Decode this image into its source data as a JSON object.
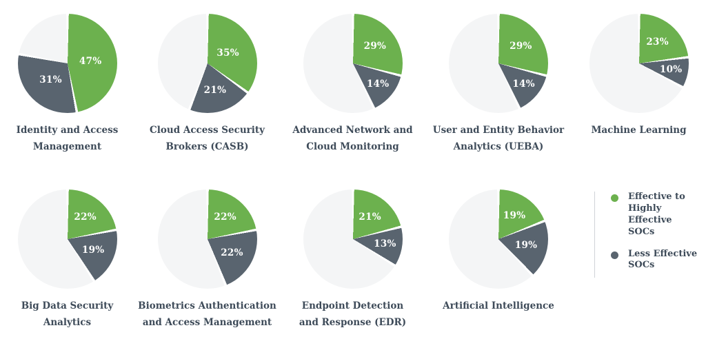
{
  "colors": {
    "effective": "#6cb14e",
    "less_effective": "#59646f",
    "remainder": "#f4f5f6",
    "title_text": "#3e4b59",
    "divider": "#cfd3d7",
    "slice_label_text": "#ffffff"
  },
  "legend": {
    "items": [
      {
        "label": "Effective to\nHighly Effective\nSOCs",
        "color_key": "effective"
      },
      {
        "label": "Less Effective\nSOCs",
        "color_key": "less_effective"
      }
    ]
  },
  "chart_data": {
    "type": "pie",
    "series_names": [
      "Effective to Highly Effective SOCs",
      "Less Effective SOCs",
      "Unlabeled remainder"
    ],
    "layout": {
      "rows": 2,
      "columns": 5,
      "legend_position": "bottom-right",
      "slice_start": "12 o'clock, clockwise: effective then less-effective"
    },
    "charts": [
      {
        "title": "Identity and Access\nManagement",
        "effective_pct": 47,
        "less_effective_pct": 31,
        "remainder_pct": 22,
        "effective_label": "47%",
        "less_effective_label": "31%"
      },
      {
        "title": "Cloud Access Security\nBrokers (CASB)",
        "effective_pct": 35,
        "less_effective_pct": 21,
        "remainder_pct": 44,
        "effective_label": "35%",
        "less_effective_label": "21%"
      },
      {
        "title": "Advanced Network and\nCloud Monitoring",
        "effective_pct": 29,
        "less_effective_pct": 14,
        "remainder_pct": 57,
        "effective_label": "29%",
        "less_effective_label": "14%"
      },
      {
        "title": "User and Entity Behavior\nAnalytics (UEBA)",
        "effective_pct": 29,
        "less_effective_pct": 14,
        "remainder_pct": 57,
        "effective_label": "29%",
        "less_effective_label": "14%"
      },
      {
        "title": "Machine Learning",
        "effective_pct": 23,
        "less_effective_pct": 10,
        "remainder_pct": 67,
        "effective_label": "23%",
        "less_effective_label": "10%"
      },
      {
        "title": "Big Data Security\nAnalytics",
        "effective_pct": 22,
        "less_effective_pct": 19,
        "remainder_pct": 59,
        "effective_label": "22%",
        "less_effective_label": "19%"
      },
      {
        "title": "Biometrics Authentication\nand Access Management",
        "effective_pct": 22,
        "less_effective_pct": 22,
        "remainder_pct": 56,
        "effective_label": "22%",
        "less_effective_label": "22%"
      },
      {
        "title": "Endpoint Detection\nand Response (EDR)",
        "effective_pct": 21,
        "less_effective_pct": 13,
        "remainder_pct": 66,
        "effective_label": "21%",
        "less_effective_label": "13%"
      },
      {
        "title": "Artificial Intelligence",
        "effective_pct": 19,
        "less_effective_pct": 19,
        "remainder_pct": 62,
        "effective_label": "19%",
        "less_effective_label": "19%"
      }
    ]
  }
}
